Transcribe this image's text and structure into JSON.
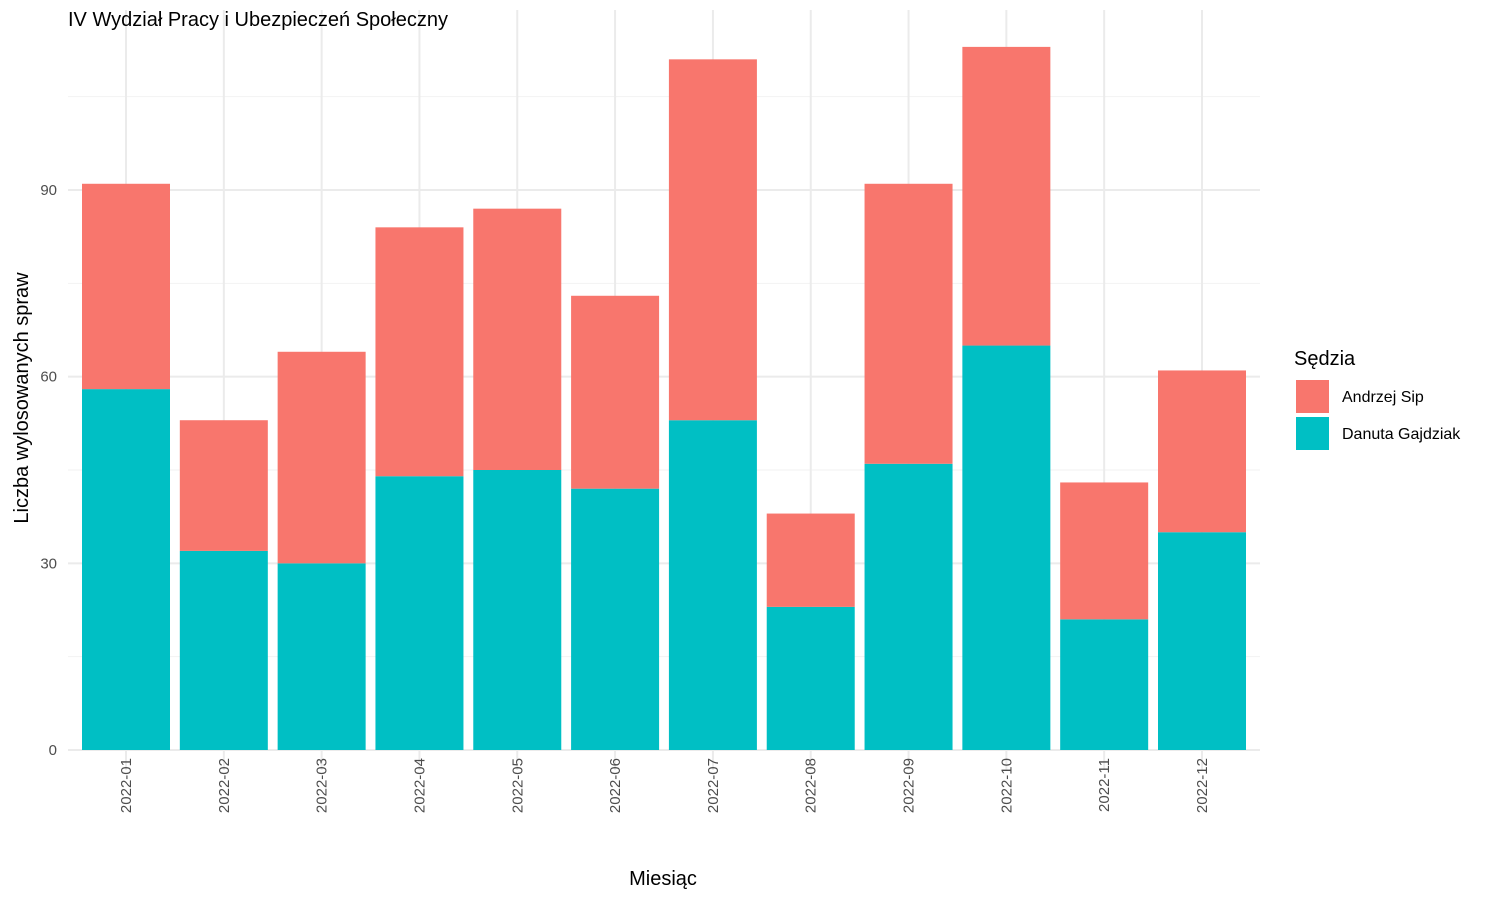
{
  "chart_data": {
    "type": "bar",
    "stacked": true,
    "title": "IV Wydział Pracy i Ubezpieczeń Społeczny",
    "xlabel": "Miesiąc",
    "ylabel": "Liczba wylosowanych spraw",
    "categories": [
      "2022-01",
      "2022-02",
      "2022-03",
      "2022-04",
      "2022-05",
      "2022-06",
      "2022-07",
      "2022-08",
      "2022-09",
      "2022-10",
      "2022-11",
      "2022-12"
    ],
    "series": [
      {
        "name": "Danuta Gajdziak",
        "color": "#00BFC4",
        "values": [
          58,
          32,
          30,
          44,
          45,
          42,
          53,
          23,
          46,
          65,
          21,
          35
        ]
      },
      {
        "name": "Andrzej Sip",
        "color": "#F8766D",
        "values": [
          33,
          21,
          34,
          40,
          42,
          31,
          58,
          15,
          45,
          48,
          22,
          26
        ]
      }
    ],
    "ylim": [
      0,
      120
    ],
    "yticks": [
      0,
      30,
      60,
      90
    ],
    "grid": true,
    "legend": {
      "title": "Sędzia",
      "position": "right",
      "order": [
        "Andrzej Sip",
        "Danuta Gajdziak"
      ]
    }
  }
}
